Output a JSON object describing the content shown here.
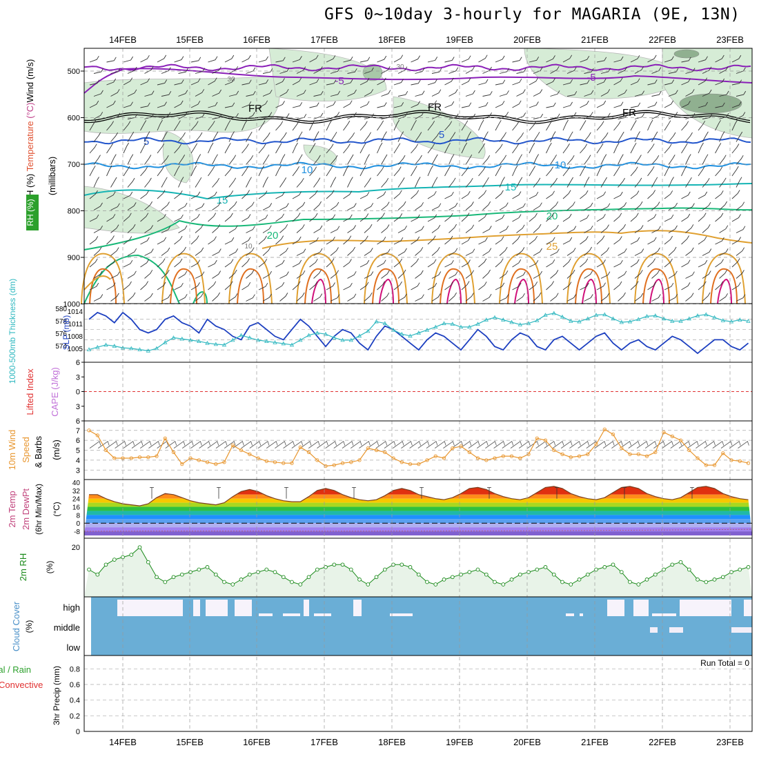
{
  "title": "GFS 0~10day 3-hourly for MAGARIA (9E, 13N)",
  "colors": {
    "rh_fill": "#d6ecd6",
    "temp_purple": "#8a1fb8",
    "temp_blue": "#2255cc",
    "temp_lightblue": "#1e90e0",
    "temp_teal": "#14b4b4",
    "temp_green": "#18b878",
    "temp_gold": "#e0a030",
    "temp_orange": "#e07020",
    "temp_magenta": "#d0107a",
    "freezing": "#000000",
    "slp": "#1c3fc0",
    "thickness": "#30b8c0",
    "wind10m": "#e8962e",
    "cloud": "#6aaed6",
    "rh2m": "#1a8a1a",
    "lifted_index_zero": "#e03030"
  },
  "axis": {
    "date_labels": [
      "14FEB",
      "15FEB",
      "16FEB",
      "17FEB",
      "18FEB",
      "19FEB",
      "20FEB",
      "21FEB",
      "22FEB",
      "23FEB"
    ]
  },
  "panels": {
    "upper": {
      "label_parts": [
        "RH (%)",
        " ",
        "Temperature",
        " (°C)",
        "Wind",
        " (m/s)"
      ],
      "unit": "(millibars)",
      "levels": [
        "500",
        "600",
        "700",
        "800",
        "900",
        "1000"
      ],
      "contour_labels": [
        "-5",
        "-5",
        "FR",
        "FR",
        "FR",
        "5",
        "5",
        "10",
        "10",
        "15",
        "15",
        "20",
        "20",
        "25",
        "30",
        "30",
        "10"
      ]
    },
    "slp": {
      "label_thickness": "1000-500mb Thickness (dm)",
      "label_slp": "SLP (mb)",
      "thickness_ticks": [
        "580",
        "578",
        "576",
        "574"
      ],
      "slp_ticks": [
        "1014",
        "1011",
        "1008",
        "1005"
      ]
    },
    "li": {
      "label_li": "Lifted Index",
      "label_cape": "CAPE (J/kg)",
      "ticks": [
        "6",
        "3",
        "0",
        "3",
        "6"
      ]
    },
    "wind10": {
      "label": "10m Wind Speed & Barbs",
      "unit": "(m/s)",
      "ticks": [
        "7",
        "6",
        "5",
        "4",
        "3"
      ]
    },
    "temp2m": {
      "label1": "2m Temp",
      "label2": "2m DewPt",
      "label3": "(6hr Min/Max)",
      "unit": "(°C)",
      "ticks": [
        "40",
        "32",
        "24",
        "16",
        "8",
        "0",
        "-8"
      ]
    },
    "rh2m": {
      "label": "2m RH",
      "unit": "(%)",
      "ticks": [
        "20"
      ]
    },
    "cloud": {
      "label": "Cloud Cover",
      "unit": "(%)",
      "levels": [
        "high",
        "middle",
        "low"
      ]
    },
    "precip": {
      "label1": "Total / Rain",
      "label2": "Convective",
      "label3": "3hr Precip (mm)",
      "ticks": [
        "0.8",
        "0.6",
        "0.4",
        "0.2",
        "0"
      ],
      "run_total": "Run Total = 0"
    }
  },
  "chart_data": [
    {
      "type": "line",
      "name": "SLP",
      "ylabel": "SLP (mb)",
      "ylim": [
        1003,
        1017
      ],
      "x_start": "2022-02-13T12Z",
      "x_step_hours": 3,
      "values": [
        1014,
        1016,
        1015,
        1013,
        1016,
        1014,
        1011,
        1010,
        1011,
        1014,
        1015,
        1013,
        1012,
        1010,
        1014,
        1012,
        1011,
        1009,
        1008,
        1012,
        1013,
        1011,
        1009,
        1008,
        1011,
        1014,
        1012,
        1009,
        1006,
        1009,
        1011,
        1010,
        1007,
        1005,
        1009,
        1012,
        1011,
        1009,
        1007,
        1005,
        1008,
        1010,
        1009,
        1007,
        1005,
        1008,
        1011,
        1009,
        1006,
        1005,
        1008,
        1010,
        1009,
        1006,
        1005,
        1008,
        1009,
        1007,
        1005,
        1007,
        1009,
        1010,
        1007,
        1005,
        1007,
        1008,
        1006,
        1005,
        1007,
        1009,
        1008,
        1006,
        1004,
        1006,
        1008,
        1008,
        1006,
        1005,
        1007,
        1009
      ]
    },
    {
      "type": "line",
      "name": "1000-500mb Thickness",
      "ylabel": "1000-500mb Thickness (dm)",
      "ylim": [
        573,
        581
      ],
      "x_start": "2022-02-13T12Z",
      "x_step_hours": 3,
      "values": [
        574.2,
        574.6,
        575.0,
        574.8,
        574.5,
        574.4,
        574.2,
        574.0,
        574.4,
        575.4,
        576.2,
        576.0,
        575.8,
        575.6,
        575.3,
        575.1,
        575.0,
        575.8,
        576.6,
        576.2,
        575.8,
        575.6,
        575.4,
        575.2,
        575.0,
        575.8,
        576.6,
        577.0,
        576.8,
        576.2,
        575.8,
        575.8,
        576.5,
        577.3,
        578.9,
        578.6,
        577.5,
        576.8,
        576.5,
        577.0,
        577.5,
        578.0,
        578.6,
        578.5,
        578.0,
        578.0,
        578.5,
        579.2,
        579.6,
        579.2,
        578.8,
        578.4,
        578.6,
        579.1,
        580.0,
        580.3,
        579.7,
        579.0,
        578.9,
        579.4,
        580.0,
        580.1,
        579.4,
        578.8,
        578.9,
        579.3,
        579.8,
        579.9,
        579.4,
        579.0,
        579.0,
        579.4,
        579.9,
        580.1,
        579.6,
        579.1,
        578.9,
        579.2,
        579.0,
        579.0
      ]
    },
    {
      "type": "line",
      "name": "10m Wind Speed",
      "ylabel": "Speed (m/s)",
      "ylim": [
        2.6,
        7.4
      ],
      "x_start": "2022-02-13T12Z",
      "x_step_hours": 3,
      "values": [
        7.0,
        6.5,
        5.0,
        4.2,
        4.2,
        4.2,
        4.3,
        4.3,
        4.4,
        6.2,
        4.8,
        3.6,
        4.2,
        4.0,
        3.8,
        3.6,
        3.8,
        5.5,
        5.0,
        4.6,
        4.2,
        3.9,
        3.8,
        3.7,
        3.7,
        5.3,
        4.8,
        4.0,
        3.4,
        3.5,
        3.7,
        3.8,
        4.0,
        5.2,
        5.0,
        4.8,
        4.2,
        3.8,
        3.6,
        3.6,
        4.0,
        4.4,
        4.2,
        5.2,
        5.4,
        4.8,
        4.2,
        4.0,
        4.2,
        4.4,
        4.4,
        4.2,
        4.6,
        6.2,
        6.0,
        5.0,
        4.6,
        4.3,
        4.4,
        4.6,
        5.6,
        7.1,
        6.6,
        5.2,
        4.6,
        4.6,
        4.4,
        4.8,
        6.8,
        6.4,
        6.0,
        5.0,
        4.2,
        3.5,
        3.5,
        4.7,
        4.0,
        3.9,
        3.7,
        3.5,
        3.5,
        3.2,
        2.9,
        3.2
      ]
    },
    {
      "type": "area",
      "name": "2m Temp",
      "ylabel": "(°C)",
      "ylim": [
        -12,
        40
      ],
      "x_start": "2022-02-13T12Z",
      "x_step_hours": 3,
      "values": [
        28,
        28,
        24,
        21,
        19,
        18,
        17,
        19,
        25,
        29,
        28,
        25,
        22,
        20,
        19,
        18,
        20,
        26,
        31,
        33,
        31,
        27,
        24,
        22,
        21,
        21,
        26,
        32,
        34,
        32,
        28,
        25,
        23,
        22,
        23,
        27,
        32,
        34,
        32,
        28,
        26,
        24,
        23,
        25,
        29,
        34,
        35,
        33,
        29,
        26,
        24,
        23,
        25,
        30,
        35,
        36,
        34,
        29,
        26,
        24,
        23,
        25,
        30,
        35,
        36,
        34,
        29,
        26,
        24,
        23,
        25,
        30,
        35,
        36,
        34,
        29,
        26,
        24,
        23,
        24
      ]
    },
    {
      "type": "line",
      "name": "2m RH",
      "ylabel": "(%)",
      "ylim": [
        0,
        22
      ],
      "x_start": "2022-02-13T12Z",
      "x_step_hours": 3,
      "values": [
        11,
        9,
        13,
        15,
        16,
        17,
        20,
        14,
        8,
        6,
        8,
        9,
        10,
        11,
        12,
        9,
        6,
        5,
        7,
        9,
        10,
        11,
        10,
        8,
        6,
        5,
        8,
        11,
        12,
        13,
        13,
        11,
        7,
        5,
        8,
        11,
        13,
        13,
        12,
        9,
        6,
        5,
        7,
        8,
        9,
        10,
        11,
        9,
        6,
        5,
        7,
        9,
        10,
        11,
        12,
        9,
        6,
        5,
        7,
        9,
        11,
        12,
        13,
        10,
        6,
        5,
        7,
        9,
        11,
        13,
        14,
        11,
        7,
        6,
        7,
        8,
        10,
        11,
        12,
        13,
        14
      ]
    },
    {
      "type": "bar",
      "name": "3hr Precip",
      "ylabel": "3hr Precip (mm)",
      "ylim": [
        0,
        1
      ],
      "values": []
    }
  ]
}
